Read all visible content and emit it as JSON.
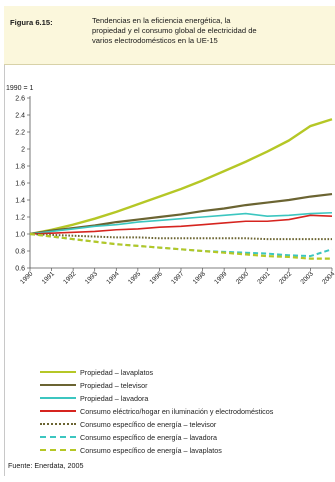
{
  "figure": {
    "number": "Figura 6.15:",
    "title": "Tendencias en la eficiencia energética, la\npropiedad y el consumo global de electricidad de\nvarios electrodomésticos en la UE-15",
    "source": "Fuente: Enerdata, 2005"
  },
  "chart_data": {
    "type": "line",
    "axis_note": "1990 = 1",
    "x": [
      "1990",
      "1991",
      "1992",
      "1993",
      "1994",
      "1995",
      "1996",
      "1997",
      "1998",
      "1999",
      "2000",
      "2001",
      "2002",
      "2003",
      "2004"
    ],
    "ylim": [
      0.6,
      2.6
    ],
    "yticks": [
      0.6,
      0.8,
      1.0,
      1.2,
      1.4,
      1.6,
      1.8,
      2.0,
      2.2,
      2.4,
      2.6
    ],
    "ytick_labels": [
      "0.6",
      "0.8",
      "1.0",
      "1.2",
      "1.4",
      "1.6",
      "1.8",
      "2",
      "2.2",
      "2.4",
      "2.6"
    ],
    "grid": false,
    "legend_position": "bottom",
    "series": [
      {
        "name": "Propiedad – lavaplatos",
        "color": "#b5c726",
        "dash": "solid",
        "width": 2.4,
        "values": [
          1.0,
          1.05,
          1.11,
          1.18,
          1.26,
          1.35,
          1.44,
          1.53,
          1.63,
          1.74,
          1.85,
          1.97,
          2.1,
          2.27,
          2.35
        ]
      },
      {
        "name": "Propiedad – televisor",
        "color": "#6b6432",
        "dash": "solid",
        "width": 2.2,
        "values": [
          1.0,
          1.04,
          1.07,
          1.1,
          1.14,
          1.17,
          1.2,
          1.23,
          1.27,
          1.3,
          1.34,
          1.37,
          1.4,
          1.44,
          1.47
        ]
      },
      {
        "name": "Propiedad – lavadora",
        "color": "#3cc6c0",
        "dash": "solid",
        "width": 1.6,
        "values": [
          1.0,
          1.03,
          1.06,
          1.09,
          1.11,
          1.14,
          1.16,
          1.18,
          1.2,
          1.22,
          1.24,
          1.21,
          1.22,
          1.24,
          1.25
        ]
      },
      {
        "name": "Consumo eléctrico/hogar en iluminación y electrodomésticos",
        "color": "#d6241f",
        "dash": "solid",
        "width": 1.6,
        "values": [
          1.0,
          1.01,
          1.02,
          1.03,
          1.05,
          1.06,
          1.08,
          1.09,
          1.11,
          1.13,
          1.15,
          1.15,
          1.17,
          1.22,
          1.21
        ]
      },
      {
        "name": "Consumo específico de energía – televisor",
        "color": "#6b6432",
        "dash": "dotted",
        "width": 2.0,
        "values": [
          1.0,
          0.99,
          0.98,
          0.97,
          0.96,
          0.96,
          0.95,
          0.95,
          0.95,
          0.95,
          0.95,
          0.94,
          0.94,
          0.94,
          0.94
        ]
      },
      {
        "name": "Consumo específico de energía – lavadora",
        "color": "#3cc6c0",
        "dash": "dashed",
        "width": 2.0,
        "values": [
          1.0,
          0.97,
          0.94,
          0.91,
          0.88,
          0.86,
          0.84,
          0.82,
          0.8,
          0.79,
          0.78,
          0.77,
          0.75,
          0.74,
          0.82
        ]
      },
      {
        "name": "Consumo específico de energía – lavaplatos",
        "color": "#b5c726",
        "dash": "dashed",
        "width": 2.2,
        "values": [
          1.0,
          0.97,
          0.94,
          0.91,
          0.88,
          0.86,
          0.84,
          0.82,
          0.8,
          0.78,
          0.76,
          0.74,
          0.73,
          0.71,
          0.71
        ]
      }
    ]
  }
}
